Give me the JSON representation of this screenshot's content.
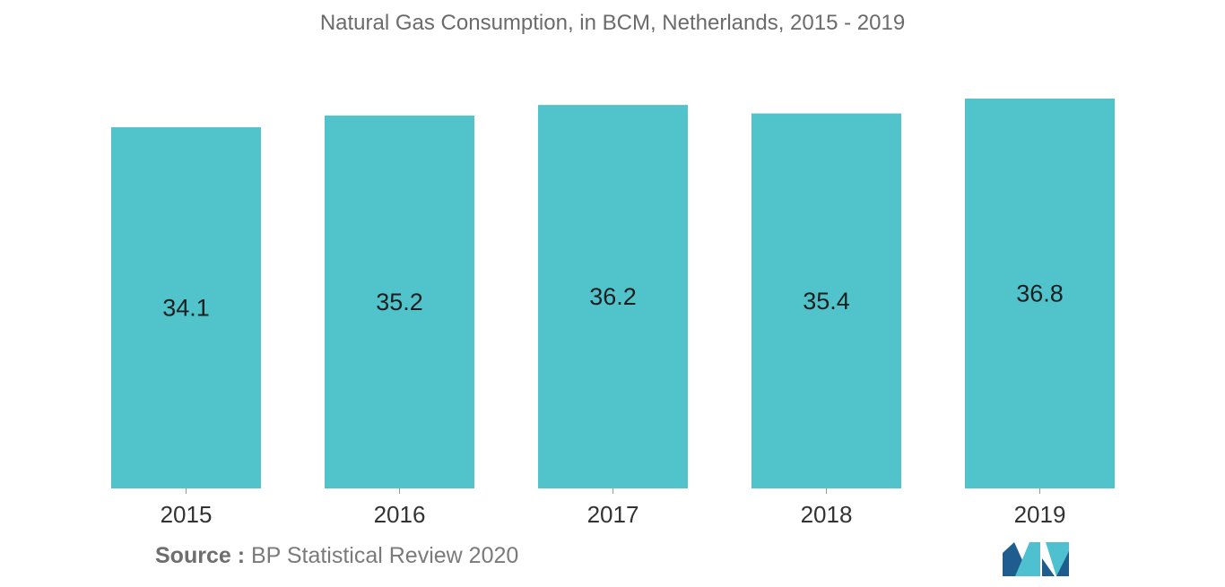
{
  "chart_data": {
    "type": "bar",
    "title": "Natural Gas Consumption, in BCM, Netherlands, 2015 - 2019",
    "categories": [
      "2015",
      "2016",
      "2017",
      "2018",
      "2019"
    ],
    "values": [
      34.1,
      35.2,
      36.2,
      35.4,
      36.8
    ],
    "xlabel": "",
    "ylabel": "",
    "grid": false,
    "legend": "none",
    "bar_color": "#50c3cb",
    "label_color": "#1f1f1f"
  },
  "source": {
    "label": "Source :",
    "text": "BP Statistical Review 2020"
  },
  "logo": {
    "icon": "mordor-intelligence-logo",
    "colors": [
      "#1f5d8f",
      "#4fc0d0"
    ]
  }
}
